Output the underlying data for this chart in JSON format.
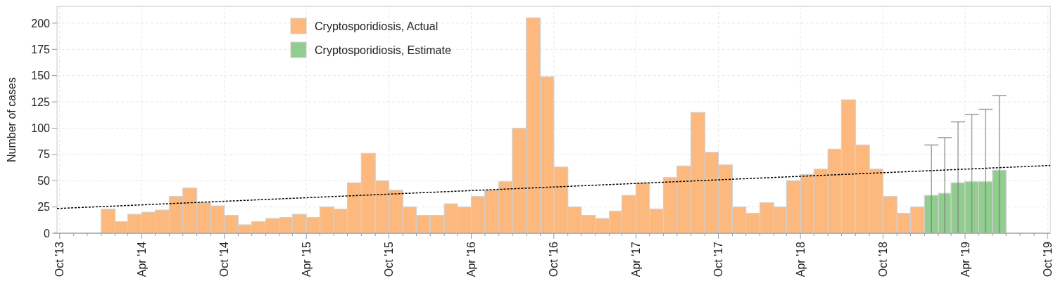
{
  "chart_data": {
    "type": "bar",
    "ylabel": "Number of cases",
    "xlim": [
      "2013-09-25",
      "2019-10-07"
    ],
    "ylim": [
      0,
      216
    ],
    "yticks": [
      0,
      25,
      50,
      75,
      100,
      125,
      150,
      175,
      200
    ],
    "xticks": [
      {
        "value": "2013-10",
        "label": "Oct '13"
      },
      {
        "value": "2013-11",
        "label": null
      },
      {
        "value": "2013-12",
        "label": null
      },
      {
        "value": "2014-01",
        "label": null
      },
      {
        "value": "2014-02",
        "label": null
      },
      {
        "value": "2014-03",
        "label": null
      },
      {
        "value": "2014-04",
        "label": "Apr '14"
      },
      {
        "value": "2014-05",
        "label": null
      },
      {
        "value": "2014-06",
        "label": null
      },
      {
        "value": "2014-07",
        "label": null
      },
      {
        "value": "2014-08",
        "label": null
      },
      {
        "value": "2014-09",
        "label": null
      },
      {
        "value": "2014-10",
        "label": "Oct '14"
      },
      {
        "value": "2014-11",
        "label": null
      },
      {
        "value": "2014-12",
        "label": null
      },
      {
        "value": "2015-01",
        "label": null
      },
      {
        "value": "2015-02",
        "label": null
      },
      {
        "value": "2015-03",
        "label": null
      },
      {
        "value": "2015-04",
        "label": "Apr '15"
      },
      {
        "value": "2015-05",
        "label": null
      },
      {
        "value": "2015-06",
        "label": null
      },
      {
        "value": "2015-07",
        "label": null
      },
      {
        "value": "2015-08",
        "label": null
      },
      {
        "value": "2015-09",
        "label": null
      },
      {
        "value": "2015-10",
        "label": "Oct '15"
      },
      {
        "value": "2015-11",
        "label": null
      },
      {
        "value": "2015-12",
        "label": null
      },
      {
        "value": "2016-01",
        "label": null
      },
      {
        "value": "2016-02",
        "label": null
      },
      {
        "value": "2016-03",
        "label": null
      },
      {
        "value": "2016-04",
        "label": "Apr '16"
      },
      {
        "value": "2016-05",
        "label": null
      },
      {
        "value": "2016-06",
        "label": null
      },
      {
        "value": "2016-07",
        "label": null
      },
      {
        "value": "2016-08",
        "label": null
      },
      {
        "value": "2016-09",
        "label": null
      },
      {
        "value": "2016-10",
        "label": "Oct '16"
      },
      {
        "value": "2016-11",
        "label": null
      },
      {
        "value": "2016-12",
        "label": null
      },
      {
        "value": "2017-01",
        "label": null
      },
      {
        "value": "2017-02",
        "label": null
      },
      {
        "value": "2017-03",
        "label": null
      },
      {
        "value": "2017-04",
        "label": "Apr '17"
      },
      {
        "value": "2017-05",
        "label": null
      },
      {
        "value": "2017-06",
        "label": null
      },
      {
        "value": "2017-07",
        "label": null
      },
      {
        "value": "2017-08",
        "label": null
      },
      {
        "value": "2017-09",
        "label": null
      },
      {
        "value": "2017-10",
        "label": "Oct '17"
      },
      {
        "value": "2017-11",
        "label": null
      },
      {
        "value": "2017-12",
        "label": null
      },
      {
        "value": "2018-01",
        "label": null
      },
      {
        "value": "2018-02",
        "label": null
      },
      {
        "value": "2018-03",
        "label": null
      },
      {
        "value": "2018-04",
        "label": "Apr '18"
      },
      {
        "value": "2018-05",
        "label": null
      },
      {
        "value": "2018-06",
        "label": null
      },
      {
        "value": "2018-07",
        "label": null
      },
      {
        "value": "2018-08",
        "label": null
      },
      {
        "value": "2018-09",
        "label": null
      },
      {
        "value": "2018-10",
        "label": "Oct '18"
      },
      {
        "value": "2018-11",
        "label": null
      },
      {
        "value": "2018-12",
        "label": null
      },
      {
        "value": "2019-01",
        "label": null
      },
      {
        "value": "2019-02",
        "label": null
      },
      {
        "value": "2019-03",
        "label": null
      },
      {
        "value": "2019-04",
        "label": "Apr '19"
      },
      {
        "value": "2019-05",
        "label": null
      },
      {
        "value": "2019-06",
        "label": null
      },
      {
        "value": "2019-07",
        "label": null
      },
      {
        "value": "2019-08",
        "label": null
      },
      {
        "value": "2019-09",
        "label": null
      },
      {
        "value": "2019-10",
        "label": "Oct '19"
      }
    ],
    "grid": true,
    "legend": "top left",
    "series": [
      {
        "name": "Cryptosporidiosis, Actual",
        "color": "#fdb97d",
        "x": [
          "2014-01",
          "2014-02",
          "2014-03",
          "2014-04",
          "2014-05",
          "2014-06",
          "2014-07",
          "2014-08",
          "2014-09",
          "2014-10",
          "2014-11",
          "2014-12",
          "2015-01",
          "2015-02",
          "2015-03",
          "2015-04",
          "2015-05",
          "2015-06",
          "2015-07",
          "2015-08",
          "2015-09",
          "2015-10",
          "2015-11",
          "2015-12",
          "2016-01",
          "2016-02",
          "2016-03",
          "2016-04",
          "2016-05",
          "2016-06",
          "2016-07",
          "2016-08",
          "2016-09",
          "2016-10",
          "2016-11",
          "2016-12",
          "2017-01",
          "2017-02",
          "2017-03",
          "2017-04",
          "2017-05",
          "2017-06",
          "2017-07",
          "2017-08",
          "2017-09",
          "2017-10",
          "2017-11",
          "2017-12",
          "2018-01",
          "2018-02",
          "2018-03",
          "2018-04",
          "2018-05",
          "2018-06",
          "2018-07",
          "2018-08",
          "2018-09",
          "2018-10",
          "2018-11",
          "2018-12"
        ],
        "values": [
          23,
          11,
          18,
          20,
          22,
          35,
          43,
          29,
          26,
          17,
          8,
          11,
          14,
          15,
          18,
          15,
          25,
          23,
          48,
          76,
          50,
          41,
          25,
          17,
          17,
          28,
          25,
          35,
          41,
          49,
          100,
          205,
          149,
          63,
          25,
          17,
          14,
          21,
          36,
          48,
          23,
          53,
          64,
          115,
          77,
          65,
          25,
          19,
          29,
          25,
          50,
          56,
          61,
          80,
          127,
          84,
          61,
          35,
          19,
          25
        ]
      },
      {
        "name": "Cryptosporidiosis, Estimate",
        "color": "#90cd8e",
        "x": [
          "2019-01",
          "2019-02",
          "2019-03",
          "2019-04",
          "2019-05",
          "2019-06"
        ],
        "values": [
          36,
          38,
          48,
          49,
          49,
          60
        ],
        "errors": [
          [
            0,
            84
          ],
          [
            0,
            91
          ],
          [
            0,
            106
          ],
          [
            0,
            113
          ],
          [
            0,
            118
          ],
          [
            0,
            131
          ]
        ]
      },
      {
        "type": "line",
        "color": "#000000",
        "line_style": "dotted",
        "x": [
          "2013-09-25",
          "2019-10-07"
        ],
        "values": [
          23.5,
          64.5
        ]
      }
    ]
  }
}
